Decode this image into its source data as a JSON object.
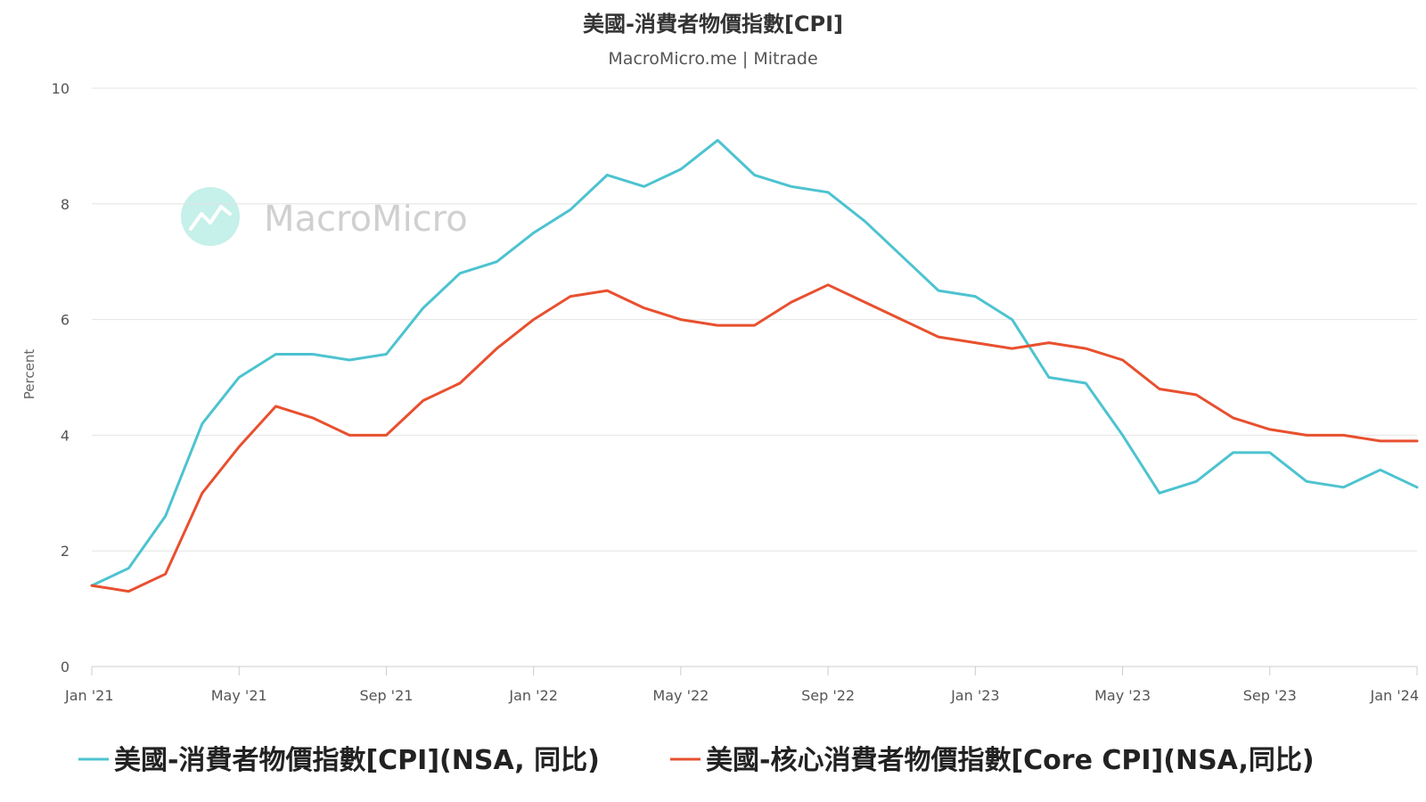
{
  "chart_data": {
    "type": "line",
    "title": "美國-消費者物價指數[CPI]",
    "subtitle": "MacroMicro.me | Mitrade",
    "watermark": "MacroMicro",
    "ylabel": "Percent",
    "ylim": [
      0,
      10
    ],
    "yticks": [
      0,
      2,
      4,
      6,
      8,
      10
    ],
    "grid": true,
    "legend_position": "bottom",
    "xticks": [
      {
        "label": "Jan '21",
        "index": 0
      },
      {
        "label": "May '21",
        "index": 4
      },
      {
        "label": "Sep '21",
        "index": 8
      },
      {
        "label": "Jan '22",
        "index": 12
      },
      {
        "label": "May '22",
        "index": 16
      },
      {
        "label": "Sep '22",
        "index": 20
      },
      {
        "label": "Jan '23",
        "index": 24
      },
      {
        "label": "May '23",
        "index": 28
      },
      {
        "label": "Sep '23",
        "index": 32
      },
      {
        "label": "Jan '24",
        "index": 36
      }
    ],
    "x": [
      "2021-01",
      "2021-02",
      "2021-03",
      "2021-04",
      "2021-05",
      "2021-06",
      "2021-07",
      "2021-08",
      "2021-09",
      "2021-10",
      "2021-11",
      "2021-12",
      "2022-01",
      "2022-02",
      "2022-03",
      "2022-04",
      "2022-05",
      "2022-06",
      "2022-07",
      "2022-08",
      "2022-09",
      "2022-10",
      "2022-11",
      "2022-12",
      "2023-01",
      "2023-02",
      "2023-03",
      "2023-04",
      "2023-05",
      "2023-06",
      "2023-07",
      "2023-08",
      "2023-09",
      "2023-10",
      "2023-11",
      "2023-12",
      "2024-01"
    ],
    "series": [
      {
        "name": "美國-消費者物價指數[CPI](NSA, 同比)",
        "color": "#4dc3d0",
        "values": [
          1.4,
          1.7,
          2.6,
          4.2,
          5.0,
          5.4,
          5.4,
          5.3,
          5.4,
          6.2,
          6.8,
          7.0,
          7.5,
          7.9,
          8.5,
          8.3,
          8.6,
          9.1,
          8.5,
          8.3,
          8.2,
          7.7,
          7.1,
          6.5,
          6.4,
          6.0,
          5.0,
          4.9,
          4.0,
          3.0,
          3.2,
          3.7,
          3.7,
          3.2,
          3.1,
          3.4,
          3.1
        ]
      },
      {
        "name": "美國-核心消費者物價指數[Core CPI](NSA,同比)",
        "color": "#e8502f",
        "values": [
          1.4,
          1.3,
          1.6,
          3.0,
          3.8,
          4.5,
          4.3,
          4.0,
          4.0,
          4.6,
          4.9,
          5.5,
          6.0,
          6.4,
          6.5,
          6.2,
          6.0,
          5.9,
          5.9,
          6.3,
          6.6,
          6.3,
          6.0,
          5.7,
          5.6,
          5.5,
          5.6,
          5.5,
          5.3,
          4.8,
          4.7,
          4.3,
          4.1,
          4.0,
          4.0,
          3.9,
          3.9
        ]
      }
    ]
  }
}
